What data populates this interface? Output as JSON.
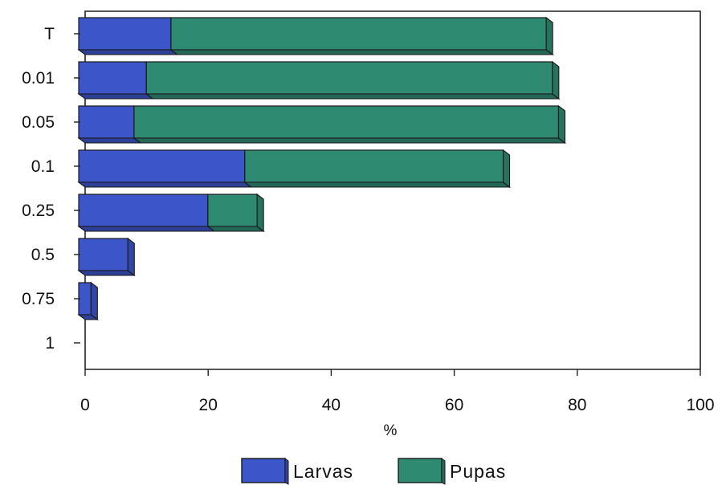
{
  "chart_data": {
    "type": "bar",
    "orientation": "horizontal",
    "stacked": true,
    "three_d": true,
    "categories": [
      "T",
      "0.01",
      "0.05",
      "0.1",
      "0.25",
      "0.5",
      "0.75",
      "1"
    ],
    "series": [
      {
        "name": "Larvas",
        "color": "#3c55c9",
        "values": [
          15,
          11,
          9,
          27,
          21,
          8,
          2,
          0
        ]
      },
      {
        "name": "Pupas",
        "color": "#2f8a72",
        "values": [
          61,
          66,
          69,
          42,
          8,
          0,
          0,
          0
        ]
      }
    ],
    "xlabel": "%",
    "xlim": [
      0,
      100
    ],
    "xticks": [
      "0",
      "20",
      "40",
      "60",
      "80",
      "100"
    ],
    "grid": false,
    "legend_position": "bottom"
  }
}
